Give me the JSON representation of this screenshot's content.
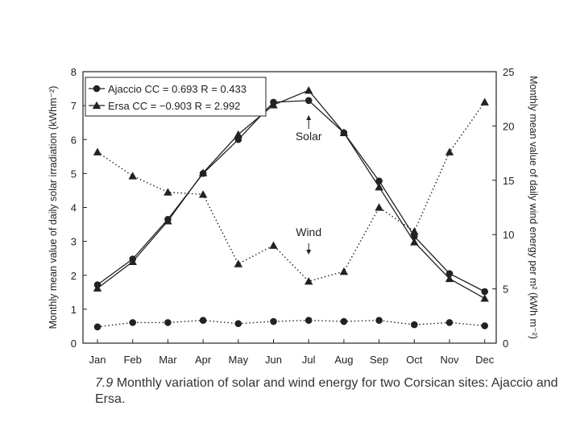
{
  "chart_data": {
    "type": "line",
    "title": "",
    "xlabel": "",
    "ylabel": "Monthly mean value of daily solar irradiation (kWhm⁻²)",
    "y2label": "Monthly mean value of daily wind energy per m² (kWh m⁻²)",
    "ylim": [
      0,
      8
    ],
    "y2lim": [
      0,
      25
    ],
    "yticks": [
      0,
      1,
      2,
      3,
      4,
      5,
      6,
      7,
      8
    ],
    "y2ticks": [
      0,
      5,
      10,
      15,
      20,
      25
    ],
    "categories": [
      "Jan",
      "Feb",
      "Mar",
      "Apr",
      "May",
      "Jun",
      "Jul",
      "Aug",
      "Sep",
      "Oct",
      "Nov",
      "Dec"
    ],
    "series": [
      {
        "name": "Ajaccio solar",
        "axis": "left",
        "marker": "circle",
        "style": "solid",
        "values": [
          1.72,
          2.48,
          3.65,
          5.0,
          6.0,
          7.1,
          7.15,
          6.2,
          4.78,
          3.15,
          2.05,
          1.52
        ]
      },
      {
        "name": "Ersa solar",
        "axis": "left",
        "marker": "triangle",
        "style": "solid",
        "values": [
          1.62,
          2.4,
          3.6,
          5.02,
          6.15,
          7.02,
          7.45,
          6.2,
          4.6,
          2.98,
          1.9,
          1.32
        ]
      },
      {
        "name": "Ajaccio wind",
        "axis": "right",
        "marker": "circle",
        "style": "dotted",
        "values": [
          1.5,
          1.9,
          1.9,
          2.1,
          1.8,
          2.0,
          2.1,
          2.0,
          2.1,
          1.7,
          1.9,
          1.6
        ]
      },
      {
        "name": "Ersa wind",
        "axis": "right",
        "marker": "triangle",
        "style": "dotted",
        "values": [
          17.6,
          15.4,
          13.9,
          13.7,
          7.3,
          9.0,
          5.7,
          6.6,
          12.5,
          10.3,
          17.6,
          22.2
        ]
      }
    ],
    "legend": [
      {
        "marker": "circle",
        "label": "Ajaccio CC = 0.693 R = 0.433"
      },
      {
        "marker": "triangle",
        "label": "Ersa CC = −0.903 R = 2.992"
      }
    ],
    "legend_position": "top-left",
    "annotations": [
      {
        "text": "Solar",
        "at": "Jul"
      },
      {
        "text": "Wind",
        "at": "Jul"
      }
    ]
  },
  "caption": {
    "number": "7.9",
    "text": "Monthly variation of solar and wind energy for two Corsican sites: Ajaccio and Ersa."
  }
}
